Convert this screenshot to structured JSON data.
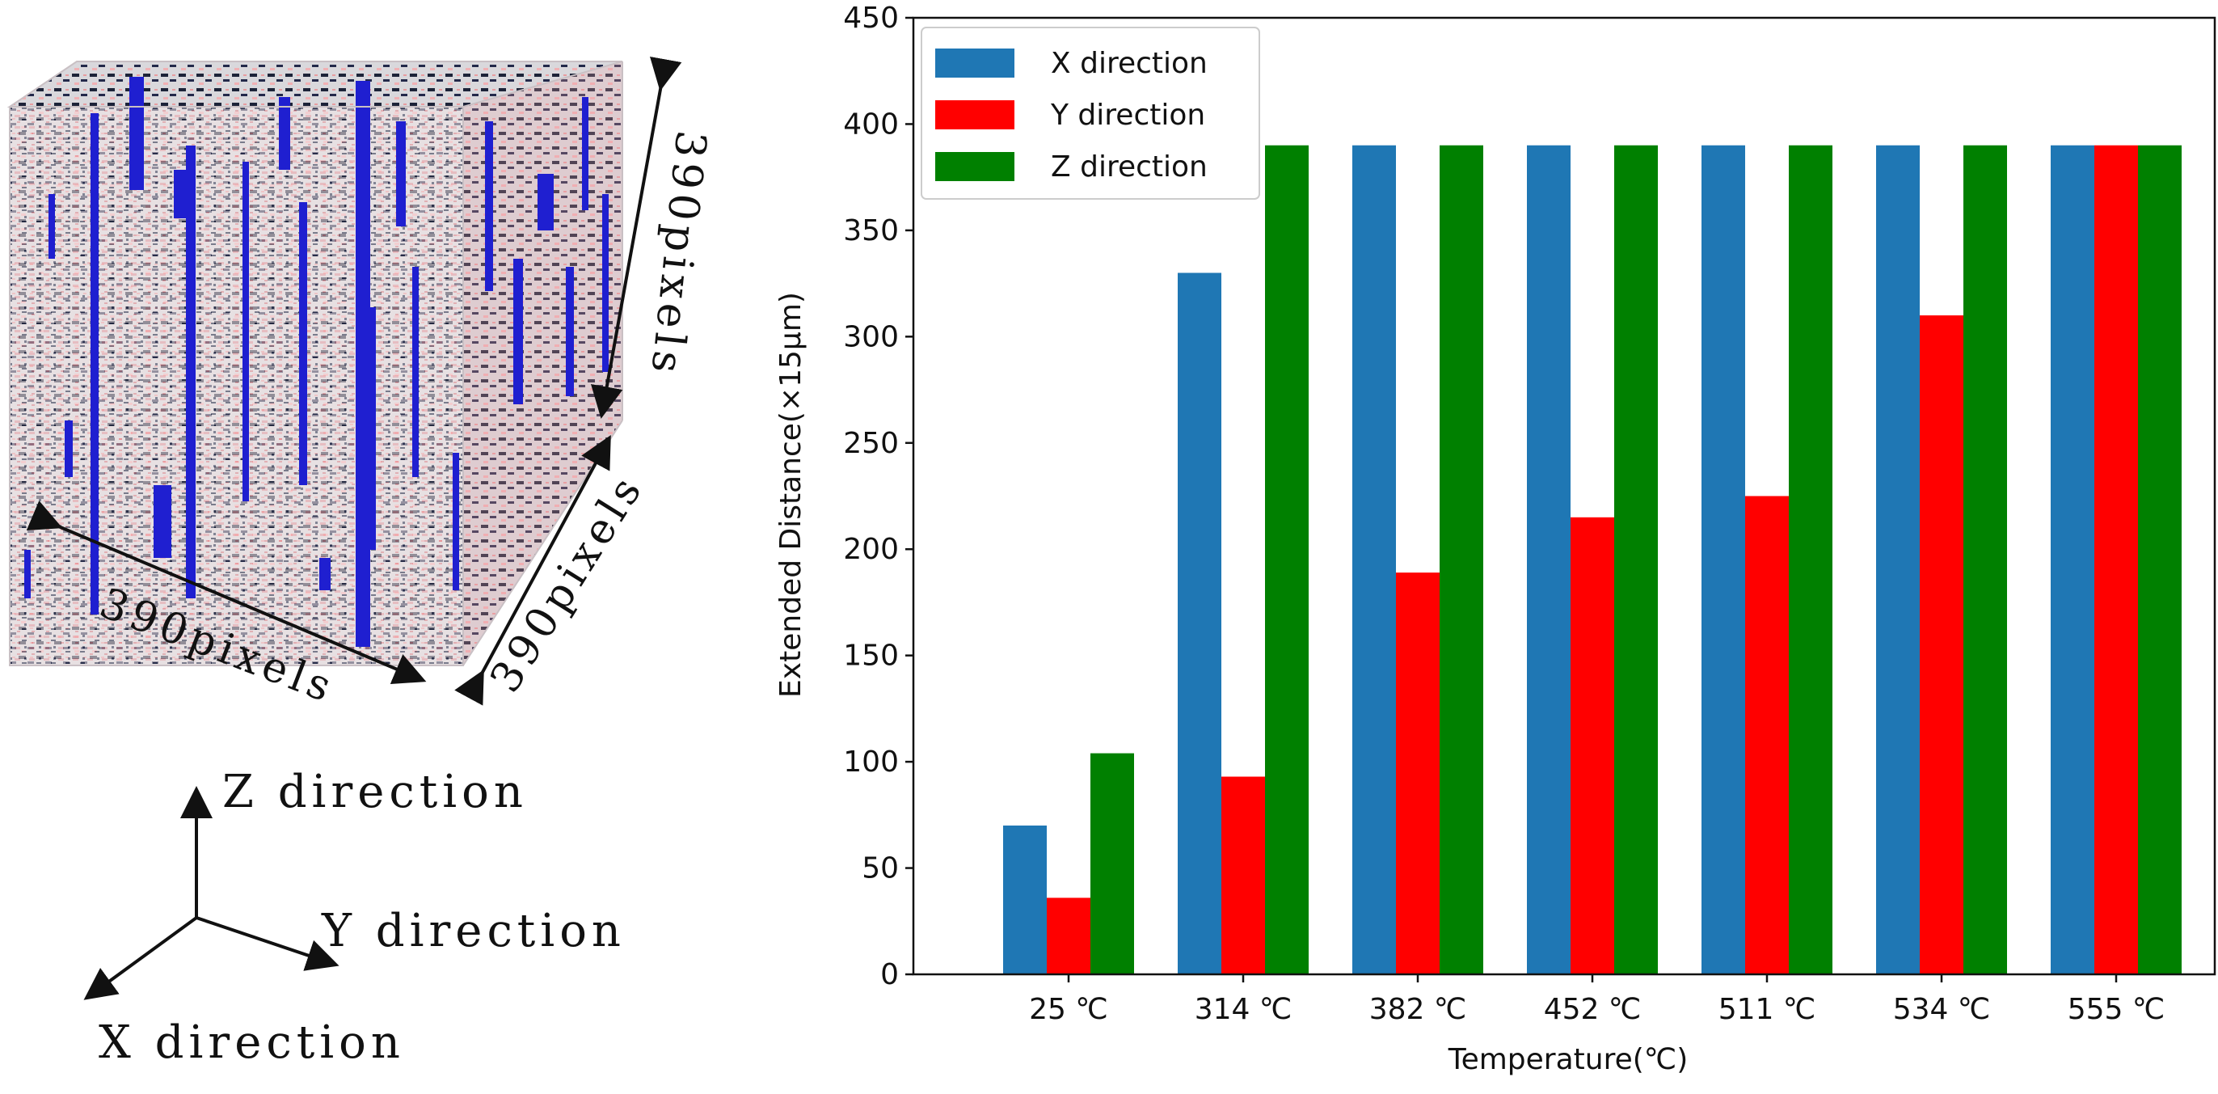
{
  "left_panel": {
    "cube_width_label": "390pixels",
    "cube_depth_label": "390pixels",
    "cube_height_label": "390pixels",
    "axis_z_label": "Z direction",
    "axis_y_label": "Y direction",
    "axis_x_label": "X direction",
    "colors": {
      "pink": "#f2b6b8",
      "blue": "#1f1fd0",
      "dark": "#1a2238",
      "white": "#f4f2f2"
    }
  },
  "chart_data": {
    "type": "bar",
    "title": "",
    "xlabel": "Temperature(℃)",
    "ylabel": "Extended Distance(×15μm)",
    "categories": [
      "25 ℃",
      "314 ℃",
      "382 ℃",
      "452 ℃",
      "511 ℃",
      "534 ℃",
      "555 ℃"
    ],
    "series": [
      {
        "name": "X direction",
        "color": "#1f77b4",
        "values": [
          70,
          330,
          390,
          390,
          390,
          390,
          390
        ]
      },
      {
        "name": "Y direction",
        "color": "#ff0000",
        "values": [
          36,
          93,
          189,
          215,
          225,
          310,
          390
        ]
      },
      {
        "name": "Z direction",
        "color": "#008000",
        "values": [
          104,
          390,
          390,
          390,
          390,
          390,
          390
        ]
      }
    ],
    "ylim": [
      0,
      450
    ],
    "yticks": [
      0,
      50,
      100,
      150,
      200,
      250,
      300,
      350,
      400,
      450
    ],
    "legend_position": "top-left",
    "grid": false
  }
}
